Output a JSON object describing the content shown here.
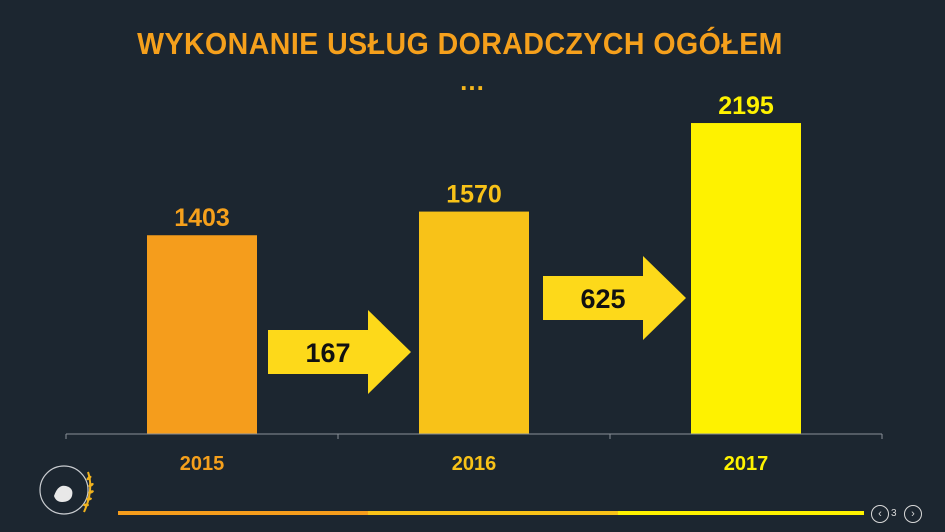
{
  "slide": {
    "title": "WYKONANIE USŁUG DORADCZYCH OGÓŁEM",
    "ellipsis": "...",
    "page_number": "3",
    "prev_icon": "chevron-left-icon",
    "next_icon": "chevron-right-icon",
    "logo_icon": "wheat-emblem-icon"
  },
  "colors": {
    "background": "#1c2630",
    "bar_2015": "#f59d1c",
    "bar_2016": "#f8c218",
    "bar_2017": "#fef200",
    "arrow": "#fdd91a",
    "title": "#f5a01c"
  },
  "chart_data": {
    "type": "bar",
    "categories": [
      "2015",
      "2016",
      "2017"
    ],
    "values": [
      1403,
      1570,
      2195
    ],
    "ylim": [
      0,
      2400
    ],
    "grid": false,
    "increments": [
      {
        "from": "2015",
        "to": "2016",
        "value": 167
      },
      {
        "from": "2016",
        "to": "2017",
        "value": 625
      }
    ]
  }
}
